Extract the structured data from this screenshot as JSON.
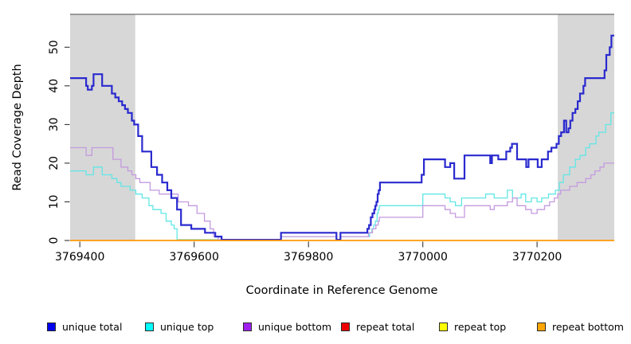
{
  "chart_data": {
    "type": "line",
    "subtype": "step",
    "title": "",
    "xlabel": "Coordinate in Reference Genome",
    "ylabel": "Read Coverage Depth",
    "xlim": [
      3769383,
      3770335
    ],
    "ylim": [
      0,
      58.5
    ],
    "x_ticks": [
      3769400,
      3769600,
      3769800,
      3770000,
      3770200
    ],
    "y_ticks": [
      0,
      10,
      20,
      30,
      40,
      50
    ],
    "grid": false,
    "legend_position": "bottom",
    "shaded_region_color": "#D7D7D7",
    "frame_color": "#4a4a4a",
    "tick_color": "#333333",
    "shaded_regions": [
      {
        "x1": 3769383,
        "x2": 3769497
      },
      {
        "x1": 3770236,
        "x2": 3770335
      }
    ],
    "overlap_segment": {
      "x1": 3769570,
      "x2": 3769650,
      "color": "#9CD69C"
    },
    "series": [
      {
        "name": "unique total",
        "legend_color": "#0000EE",
        "line_color": "#2A2ACF",
        "width": 2.2,
        "zero_lift": true,
        "step_points": [
          [
            3769383,
            42
          ],
          [
            3769411,
            40
          ],
          [
            3769414,
            39
          ],
          [
            3769421,
            40
          ],
          [
            3769424,
            43
          ],
          [
            3769439,
            40
          ],
          [
            3769456,
            38
          ],
          [
            3769462,
            37
          ],
          [
            3769468,
            36
          ],
          [
            3769474,
            35
          ],
          [
            3769479,
            34
          ],
          [
            3769484,
            33
          ],
          [
            3769491,
            31
          ],
          [
            3769495,
            30
          ],
          [
            3769502,
            27
          ],
          [
            3769509,
            23
          ],
          [
            3769525,
            19
          ],
          [
            3769535,
            17
          ],
          [
            3769544,
            15
          ],
          [
            3769553,
            13
          ],
          [
            3769560,
            11
          ],
          [
            3769570,
            8
          ],
          [
            3769577,
            4
          ],
          [
            3769595,
            3
          ],
          [
            3769619,
            2
          ],
          [
            3769637,
            1
          ],
          [
            3769648,
            0
          ],
          [
            3769752,
            2
          ],
          [
            3769849,
            0
          ],
          [
            3769856,
            2
          ],
          [
            3769903,
            3
          ],
          [
            3769906,
            4
          ],
          [
            3769909,
            6
          ],
          [
            3769912,
            7
          ],
          [
            3769915,
            8
          ],
          [
            3769917,
            9
          ],
          [
            3769919,
            10
          ],
          [
            3769921,
            12
          ],
          [
            3769923,
            13
          ],
          [
            3769925,
            15
          ],
          [
            3769998,
            17
          ],
          [
            3770002,
            21
          ],
          [
            3770039,
            19
          ],
          [
            3770048,
            20
          ],
          [
            3770055,
            16
          ],
          [
            3770073,
            22
          ],
          [
            3770118,
            20
          ],
          [
            3770121,
            22
          ],
          [
            3770132,
            21
          ],
          [
            3770146,
            23
          ],
          [
            3770153,
            24
          ],
          [
            3770156,
            25
          ],
          [
            3770165,
            21
          ],
          [
            3770181,
            19
          ],
          [
            3770185,
            21
          ],
          [
            3770201,
            19
          ],
          [
            3770208,
            21
          ],
          [
            3770219,
            23
          ],
          [
            3770225,
            24
          ],
          [
            3770234,
            25
          ],
          [
            3770238,
            27
          ],
          [
            3770242,
            28
          ],
          [
            3770247,
            31
          ],
          [
            3770251,
            28
          ],
          [
            3770255,
            29
          ],
          [
            3770258,
            31
          ],
          [
            3770262,
            33
          ],
          [
            3770267,
            34
          ],
          [
            3770271,
            36
          ],
          [
            3770275,
            38
          ],
          [
            3770281,
            40
          ],
          [
            3770284,
            42
          ],
          [
            3770318,
            44
          ],
          [
            3770321,
            48
          ],
          [
            3770327,
            50
          ],
          [
            3770330,
            53
          ]
        ]
      },
      {
        "name": "unique top",
        "legend_color": "#00FFFF",
        "line_color": "#62E6E6",
        "width": 1.3,
        "zero_lift": true,
        "step_points": [
          [
            3769383,
            18
          ],
          [
            3769411,
            17
          ],
          [
            3769424,
            19
          ],
          [
            3769439,
            17
          ],
          [
            3769456,
            16
          ],
          [
            3769465,
            15
          ],
          [
            3769472,
            14
          ],
          [
            3769488,
            13
          ],
          [
            3769498,
            12
          ],
          [
            3769509,
            11
          ],
          [
            3769521,
            9
          ],
          [
            3769528,
            8
          ],
          [
            3769542,
            7
          ],
          [
            3769551,
            5
          ],
          [
            3769560,
            4
          ],
          [
            3769565,
            3
          ],
          [
            3769570,
            0
          ],
          [
            3769752,
            1
          ],
          [
            3769849,
            0
          ],
          [
            3769856,
            1
          ],
          [
            3769907,
            2
          ],
          [
            3769911,
            3
          ],
          [
            3769914,
            4
          ],
          [
            3769917,
            5
          ],
          [
            3769920,
            7
          ],
          [
            3769922,
            8
          ],
          [
            3769924,
            9
          ],
          [
            3770000,
            12
          ],
          [
            3770039,
            11
          ],
          [
            3770048,
            10
          ],
          [
            3770057,
            9
          ],
          [
            3770068,
            11
          ],
          [
            3770110,
            12
          ],
          [
            3770125,
            11
          ],
          [
            3770148,
            13
          ],
          [
            3770157,
            11
          ],
          [
            3770172,
            12
          ],
          [
            3770180,
            10
          ],
          [
            3770190,
            11
          ],
          [
            3770200,
            10
          ],
          [
            3770208,
            11
          ],
          [
            3770220,
            12
          ],
          [
            3770232,
            13
          ],
          [
            3770239,
            15
          ],
          [
            3770246,
            17
          ],
          [
            3770257,
            19
          ],
          [
            3770267,
            21
          ],
          [
            3770275,
            22
          ],
          [
            3770285,
            24
          ],
          [
            3770292,
            25
          ],
          [
            3770303,
            27
          ],
          [
            3770308,
            28
          ],
          [
            3770320,
            30
          ],
          [
            3770329,
            33
          ]
        ]
      },
      {
        "name": "unique bottom",
        "legend_color": "#A020F0",
        "line_color": "#C49ADF",
        "width": 1.3,
        "zero_lift": true,
        "step_points": [
          [
            3769383,
            24
          ],
          [
            3769411,
            22
          ],
          [
            3769421,
            24
          ],
          [
            3769458,
            21
          ],
          [
            3769472,
            19
          ],
          [
            3769484,
            18
          ],
          [
            3769491,
            17
          ],
          [
            3769498,
            16
          ],
          [
            3769505,
            15
          ],
          [
            3769523,
            13
          ],
          [
            3769539,
            12
          ],
          [
            3769572,
            10
          ],
          [
            3769590,
            9
          ],
          [
            3769605,
            7
          ],
          [
            3769618,
            5
          ],
          [
            3769628,
            3
          ],
          [
            3769634,
            1
          ],
          [
            3769642,
            0
          ],
          [
            3769752,
            1
          ],
          [
            3769849,
            0
          ],
          [
            3769856,
            1
          ],
          [
            3769905,
            2
          ],
          [
            3769912,
            3
          ],
          [
            3769918,
            4
          ],
          [
            3769922,
            5
          ],
          [
            3769924,
            6
          ],
          [
            3770000,
            9
          ],
          [
            3770039,
            8
          ],
          [
            3770048,
            7
          ],
          [
            3770057,
            6
          ],
          [
            3770073,
            9
          ],
          [
            3770118,
            8
          ],
          [
            3770125,
            9
          ],
          [
            3770148,
            10
          ],
          [
            3770157,
            11
          ],
          [
            3770165,
            9
          ],
          [
            3770180,
            8
          ],
          [
            3770190,
            7
          ],
          [
            3770200,
            8
          ],
          [
            3770213,
            9
          ],
          [
            3770222,
            10
          ],
          [
            3770230,
            11
          ],
          [
            3770236,
            12
          ],
          [
            3770241,
            13
          ],
          [
            3770257,
            14
          ],
          [
            3770270,
            15
          ],
          [
            3770285,
            16
          ],
          [
            3770294,
            17
          ],
          [
            3770301,
            18
          ],
          [
            3770310,
            19
          ],
          [
            3770317,
            20
          ]
        ]
      },
      {
        "name": "repeat total",
        "legend_color": "#EE0000",
        "line_color": "#EE0000",
        "width": 1.2,
        "zero_lift": false,
        "step_points": [
          [
            3769383,
            0
          ],
          [
            3770335,
            0
          ]
        ]
      },
      {
        "name": "repeat top",
        "legend_color": "#FFFF00",
        "line_color": "#FFFF00",
        "width": 1.2,
        "zero_lift": false,
        "step_points": [
          [
            3769383,
            0
          ],
          [
            3770335,
            0
          ]
        ]
      },
      {
        "name": "repeat bottom",
        "legend_color": "#FFA500",
        "line_color": "#FF9800",
        "width": 1.5,
        "zero_lift": false,
        "step_points": [
          [
            3769383,
            0
          ],
          [
            3770335,
            0
          ]
        ]
      }
    ]
  }
}
